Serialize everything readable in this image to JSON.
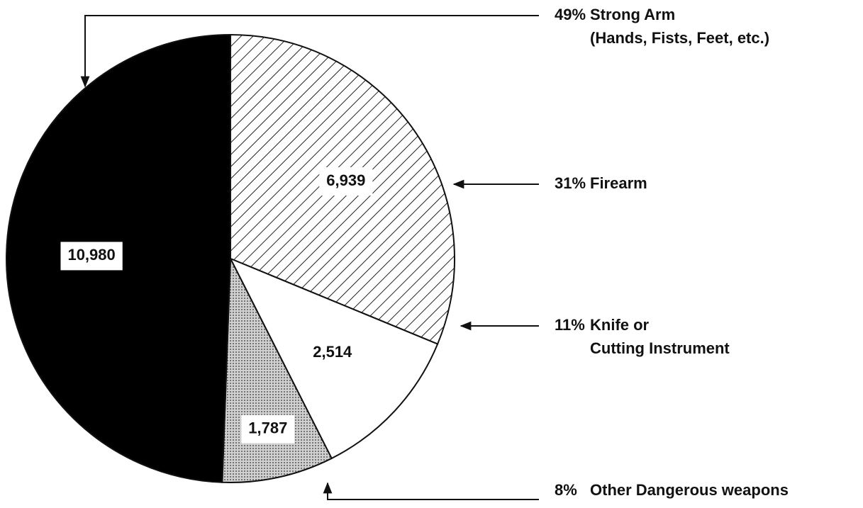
{
  "chart_data": {
    "type": "pie",
    "categories": [
      [
        "Firearm"
      ],
      [
        "Knife or",
        "Cutting Instrument"
      ],
      [
        "Other Dangerous weapons"
      ],
      [
        "Strong Arm",
        "(Hands, Fists, Feet, etc.)"
      ]
    ],
    "values": [
      6939,
      2514,
      1787,
      10980
    ],
    "value_labels": [
      "6,939",
      "2,514",
      "1,787",
      "10,980"
    ],
    "percents": [
      31,
      11,
      8,
      49
    ],
    "percent_labels": [
      "31%",
      "11%",
      "8%",
      "49%"
    ],
    "colors": [
      "#ffffff",
      "#ffffff",
      "#b8b8b8",
      "#000000"
    ],
    "patterns": [
      "hatch",
      null,
      "dots",
      null
    ]
  }
}
